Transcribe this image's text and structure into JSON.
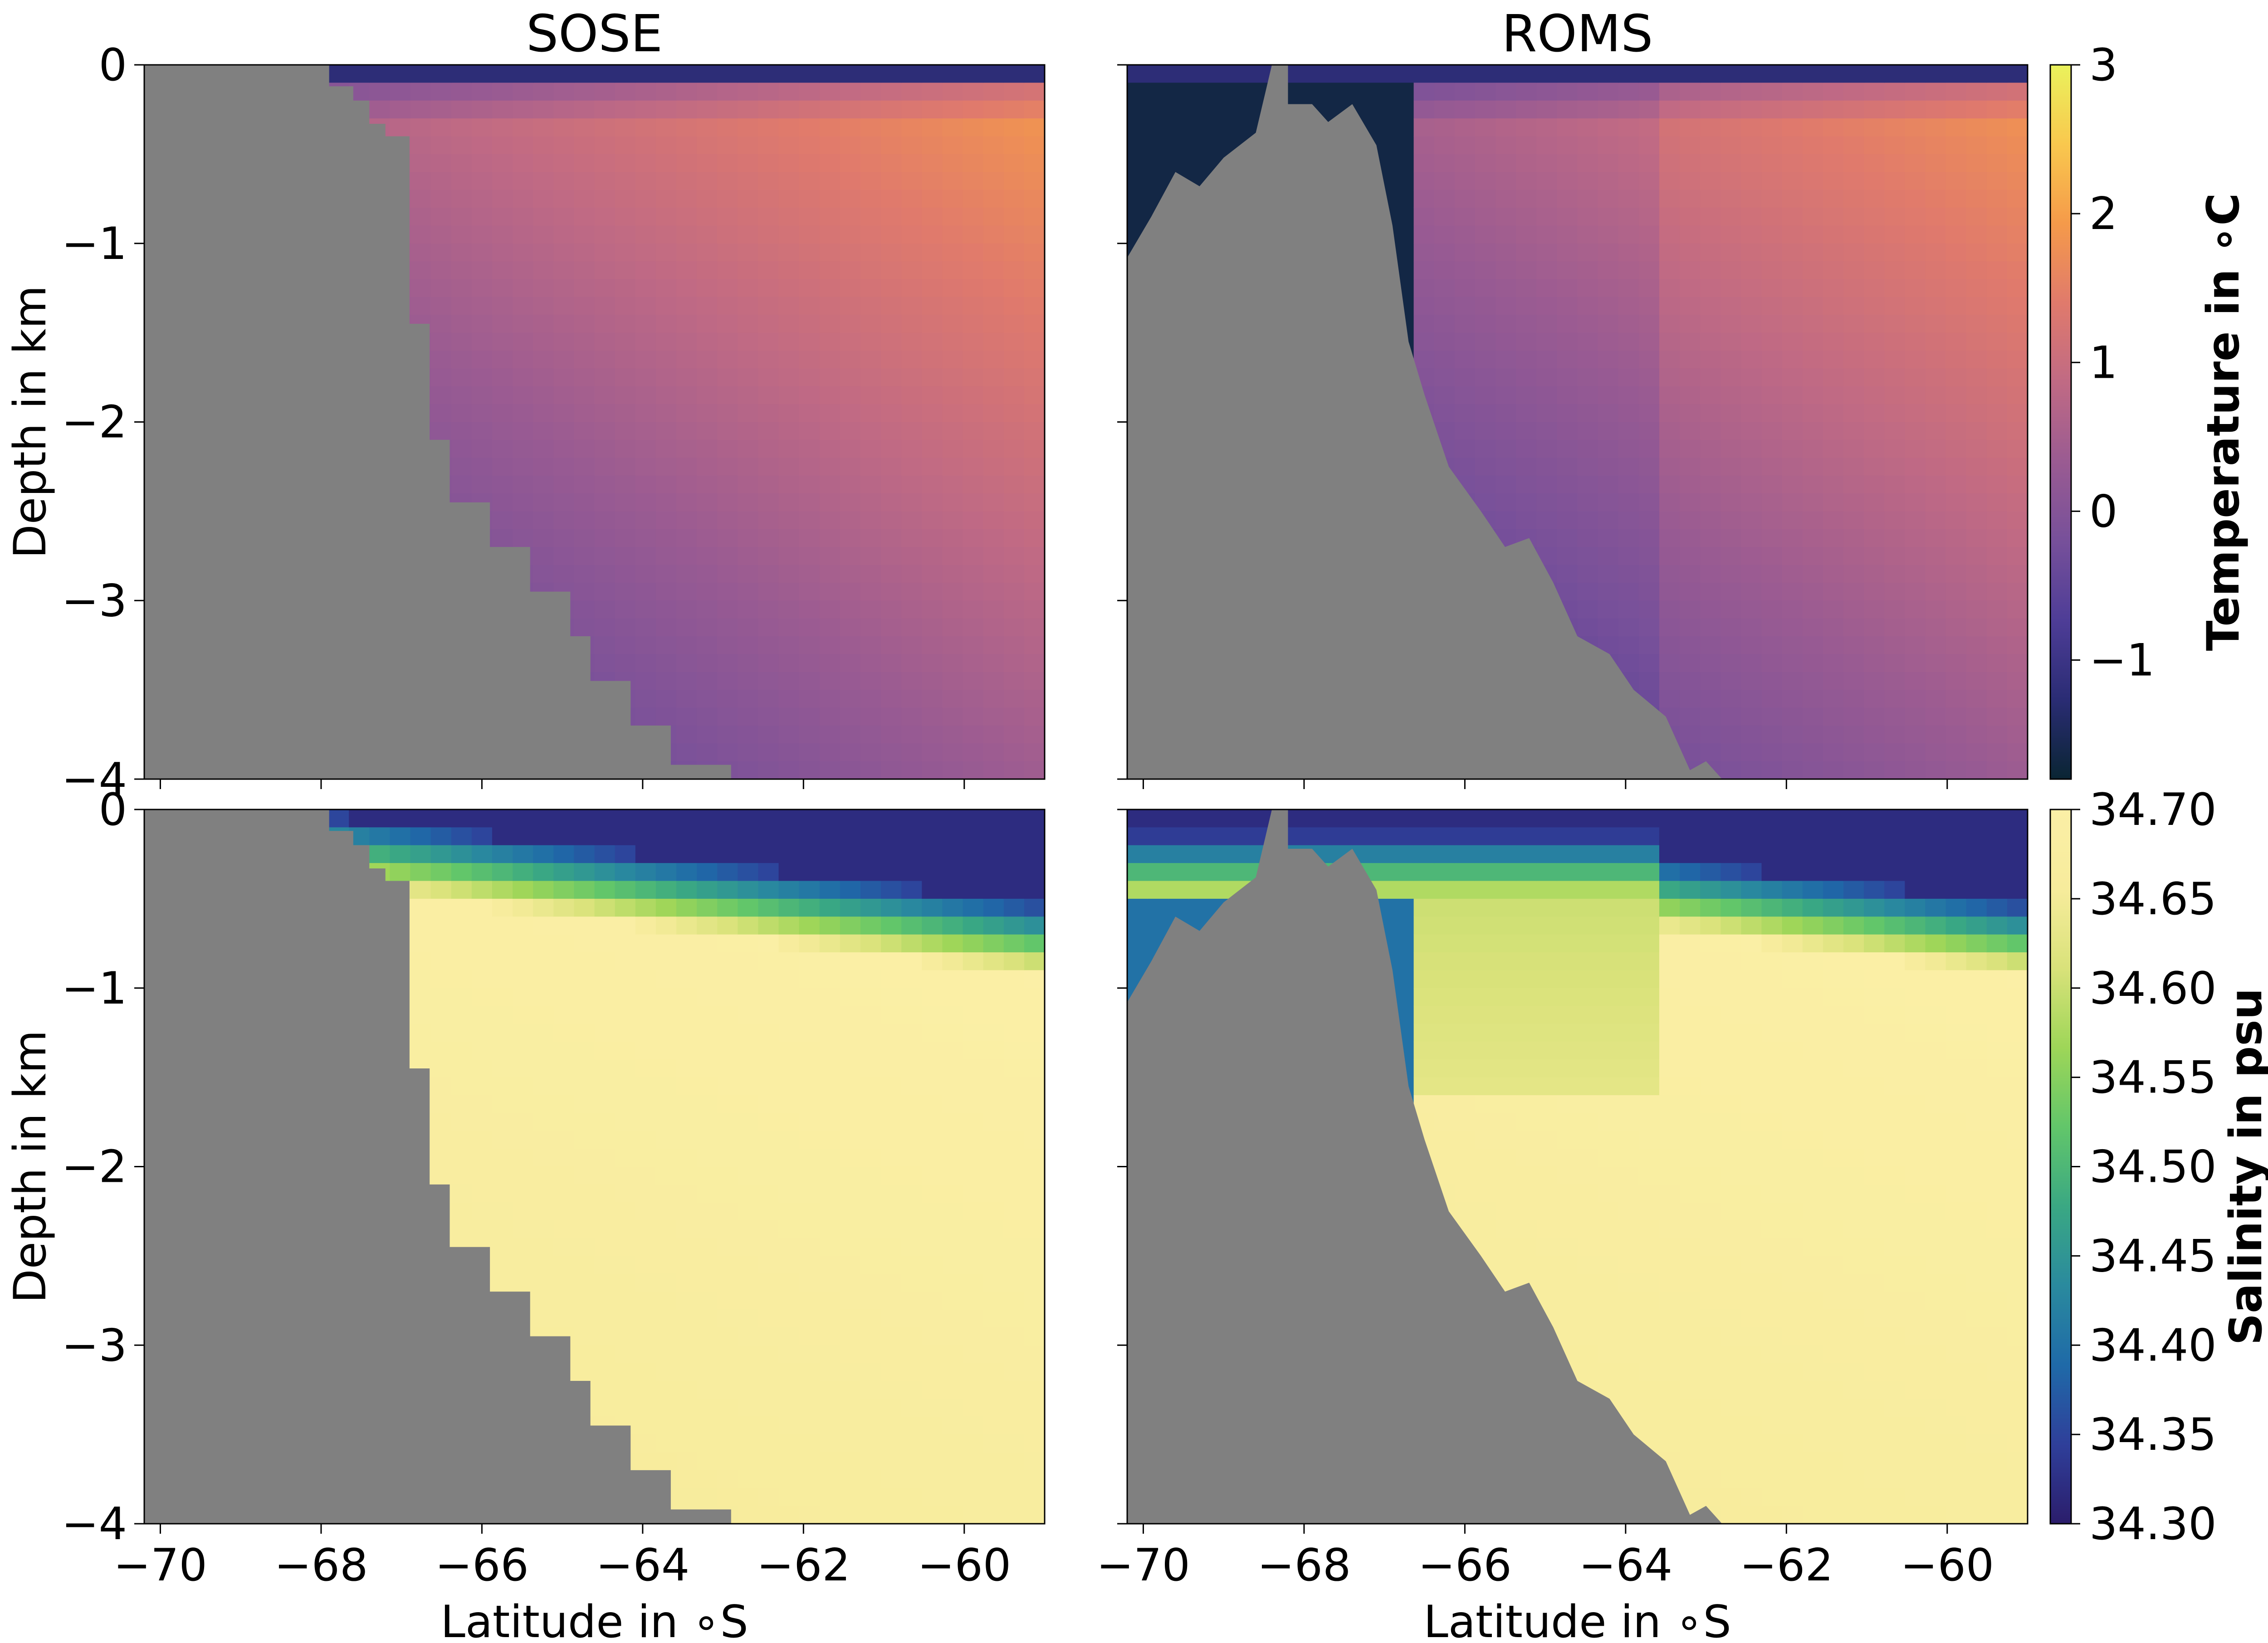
{
  "colors": {
    "land": "#808080",
    "temperature_colormap": [
      "#0a2533",
      "#2a2c74",
      "#4e3d97",
      "#77509a",
      "#9a5b92",
      "#c06a84",
      "#e07a6c",
      "#f59a4a",
      "#f9c84e",
      "#eaf25c"
    ],
    "salinity_colormap": [
      "#2b1d6b",
      "#2f3f9a",
      "#1f6aa8",
      "#2a8a9e",
      "#3aa883",
      "#62c66a",
      "#9ed658",
      "#d9e27a",
      "#f7ec9c",
      "#fbefa6"
    ]
  },
  "chart_data": [
    {
      "type": "heatmap",
      "panel": "top-left",
      "title": "SOSE",
      "variable": "temperature",
      "xlabel": "",
      "ylabel": "Depth in km",
      "xlim": [
        -70.2,
        -59
      ],
      "ylim": [
        -4,
        0
      ],
      "xticks": [
        -70,
        -68,
        -66,
        -64,
        -62,
        -60
      ],
      "yticks": [
        0,
        -1,
        -2,
        -3,
        -4
      ],
      "ytick_labels": [
        "0",
        "−1",
        "−2",
        "−3",
        "−4"
      ],
      "bathymetry": [
        [
          -70.2,
          0
        ],
        [
          -67.9,
          0
        ],
        [
          -67.9,
          -0.12
        ],
        [
          -67.6,
          -0.12
        ],
        [
          -67.6,
          -0.2
        ],
        [
          -67.4,
          -0.2
        ],
        [
          -67.4,
          -0.33
        ],
        [
          -67.2,
          -0.33
        ],
        [
          -67.2,
          -0.4
        ],
        [
          -66.9,
          -0.4
        ],
        [
          -66.9,
          -1.45
        ],
        [
          -66.65,
          -1.45
        ],
        [
          -66.65,
          -2.1
        ],
        [
          -66.4,
          -2.1
        ],
        [
          -66.4,
          -2.45
        ],
        [
          -65.9,
          -2.45
        ],
        [
          -65.9,
          -2.7
        ],
        [
          -65.4,
          -2.7
        ],
        [
          -65.4,
          -2.95
        ],
        [
          -64.9,
          -2.95
        ],
        [
          -64.9,
          -3.2
        ],
        [
          -64.65,
          -3.2
        ],
        [
          -64.65,
          -3.45
        ],
        [
          -64.15,
          -3.45
        ],
        [
          -64.15,
          -3.7
        ],
        [
          -63.65,
          -3.7
        ],
        [
          -63.65,
          -3.92
        ],
        [
          -62.9,
          -3.92
        ],
        [
          -62.9,
          -4
        ],
        [
          -70.2,
          -4
        ]
      ]
    },
    {
      "type": "heatmap",
      "panel": "top-right",
      "title": "ROMS",
      "variable": "temperature",
      "xlabel": "",
      "ylabel": "",
      "xlim": [
        -70.2,
        -59
      ],
      "ylim": [
        -4,
        0
      ],
      "xticks": [
        -70,
        -68,
        -66,
        -64,
        -62,
        -60
      ],
      "yticks": [
        0,
        -1,
        -2,
        -3,
        -4
      ],
      "bathymetry": [
        [
          -70.2,
          -1.08
        ],
        [
          -69.9,
          -0.85
        ],
        [
          -69.6,
          -0.6
        ],
        [
          -69.3,
          -0.68
        ],
        [
          -69.0,
          -0.52
        ],
        [
          -68.6,
          -0.38
        ],
        [
          -68.4,
          0
        ],
        [
          -68.2,
          0
        ],
        [
          -68.2,
          -0.22
        ],
        [
          -67.9,
          -0.22
        ],
        [
          -67.7,
          -0.32
        ],
        [
          -67.4,
          -0.22
        ],
        [
          -67.1,
          -0.45
        ],
        [
          -66.9,
          -0.9
        ],
        [
          -66.7,
          -1.55
        ],
        [
          -66.5,
          -1.85
        ],
        [
          -66.2,
          -2.25
        ],
        [
          -65.8,
          -2.5
        ],
        [
          -65.5,
          -2.7
        ],
        [
          -65.2,
          -2.65
        ],
        [
          -64.9,
          -2.9
        ],
        [
          -64.6,
          -3.2
        ],
        [
          -64.2,
          -3.3
        ],
        [
          -63.9,
          -3.5
        ],
        [
          -63.5,
          -3.65
        ],
        [
          -63.2,
          -3.95
        ],
        [
          -63.0,
          -3.9
        ],
        [
          -62.8,
          -4
        ],
        [
          -70.2,
          -4
        ]
      ]
    },
    {
      "type": "heatmap",
      "panel": "bottom-left",
      "title": "",
      "variable": "salinity",
      "xlabel": "Latitude in ∘S",
      "ylabel": "Depth in km",
      "xlim": [
        -70.2,
        -59
      ],
      "ylim": [
        -4,
        0
      ],
      "xticks": [
        -70,
        -68,
        -66,
        -64,
        -62,
        -60
      ],
      "xtick_labels": [
        "−70",
        "−68",
        "−66",
        "−64",
        "−62",
        "−60"
      ],
      "yticks": [
        0,
        -1,
        -2,
        -3,
        -4
      ],
      "ytick_labels": [
        "0",
        "−1",
        "−2",
        "−3",
        "−4"
      ],
      "bathymetry": [
        [
          -70.2,
          0
        ],
        [
          -67.9,
          0
        ],
        [
          -67.9,
          -0.12
        ],
        [
          -67.6,
          -0.12
        ],
        [
          -67.6,
          -0.2
        ],
        [
          -67.4,
          -0.2
        ],
        [
          -67.4,
          -0.33
        ],
        [
          -67.2,
          -0.33
        ],
        [
          -67.2,
          -0.4
        ],
        [
          -66.9,
          -0.4
        ],
        [
          -66.9,
          -1.45
        ],
        [
          -66.65,
          -1.45
        ],
        [
          -66.65,
          -2.1
        ],
        [
          -66.4,
          -2.1
        ],
        [
          -66.4,
          -2.45
        ],
        [
          -65.9,
          -2.45
        ],
        [
          -65.9,
          -2.7
        ],
        [
          -65.4,
          -2.7
        ],
        [
          -65.4,
          -2.95
        ],
        [
          -64.9,
          -2.95
        ],
        [
          -64.9,
          -3.2
        ],
        [
          -64.65,
          -3.2
        ],
        [
          -64.65,
          -3.45
        ],
        [
          -64.15,
          -3.45
        ],
        [
          -64.15,
          -3.7
        ],
        [
          -63.65,
          -3.7
        ],
        [
          -63.65,
          -3.92
        ],
        [
          -62.9,
          -3.92
        ],
        [
          -62.9,
          -4
        ],
        [
          -70.2,
          -4
        ]
      ]
    },
    {
      "type": "heatmap",
      "panel": "bottom-right",
      "title": "",
      "variable": "salinity",
      "xlabel": "Latitude in ∘S",
      "ylabel": "",
      "xlim": [
        -70.2,
        -59
      ],
      "ylim": [
        -4,
        0
      ],
      "xticks": [
        -70,
        -68,
        -66,
        -64,
        -62,
        -60
      ],
      "xtick_labels": [
        "−70",
        "−68",
        "−66",
        "−64",
        "−62",
        "−60"
      ],
      "yticks": [
        0,
        -1,
        -2,
        -3,
        -4
      ],
      "bathymetry": [
        [
          -70.2,
          -1.08
        ],
        [
          -69.9,
          -0.85
        ],
        [
          -69.6,
          -0.6
        ],
        [
          -69.3,
          -0.68
        ],
        [
          -69.0,
          -0.52
        ],
        [
          -68.6,
          -0.38
        ],
        [
          -68.4,
          0
        ],
        [
          -68.2,
          0
        ],
        [
          -68.2,
          -0.22
        ],
        [
          -67.9,
          -0.22
        ],
        [
          -67.7,
          -0.32
        ],
        [
          -67.4,
          -0.22
        ],
        [
          -67.1,
          -0.45
        ],
        [
          -66.9,
          -0.9
        ],
        [
          -66.7,
          -1.55
        ],
        [
          -66.5,
          -1.85
        ],
        [
          -66.2,
          -2.25
        ],
        [
          -65.8,
          -2.5
        ],
        [
          -65.5,
          -2.7
        ],
        [
          -65.2,
          -2.65
        ],
        [
          -64.9,
          -2.9
        ],
        [
          -64.6,
          -3.2
        ],
        [
          -64.2,
          -3.3
        ],
        [
          -63.9,
          -3.5
        ],
        [
          -63.5,
          -3.65
        ],
        [
          -63.2,
          -3.95
        ],
        [
          -63.0,
          -3.9
        ],
        [
          -62.8,
          -4
        ],
        [
          -70.2,
          -4
        ]
      ]
    }
  ],
  "colorbars": [
    {
      "label": "Temperature in ∘C",
      "range": [
        -1.8,
        3
      ],
      "ticks": [
        3,
        2,
        1,
        0,
        -1
      ],
      "tick_labels": [
        "3",
        "2",
        "1",
        "0",
        "−1"
      ]
    },
    {
      "label": "Salinity in psu",
      "range": [
        34.3,
        34.7
      ],
      "ticks": [
        34.7,
        34.65,
        34.6,
        34.55,
        34.5,
        34.45,
        34.4,
        34.35,
        34.3
      ],
      "tick_labels": [
        "34.70",
        "34.65",
        "34.60",
        "34.55",
        "34.50",
        "34.45",
        "34.40",
        "34.35",
        "34.30"
      ]
    }
  ]
}
